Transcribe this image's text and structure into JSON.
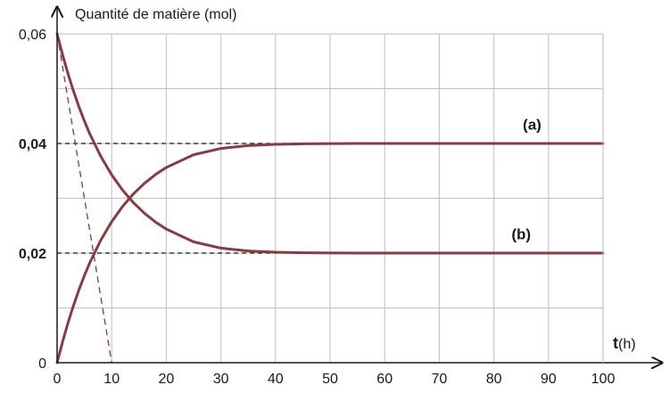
{
  "chart_data": {
    "type": "line",
    "ylabel": "Quantité de matière (mol)",
    "xlabel_bold": "t",
    "xlabel_unit": "(h)",
    "xlim": [
      0,
      100
    ],
    "ylim": [
      0,
      0.06
    ],
    "grid": true,
    "x_ticks": [
      {
        "value": 0,
        "label": "0"
      },
      {
        "value": 10,
        "label": "10"
      },
      {
        "value": 20,
        "label": "20"
      },
      {
        "value": 30,
        "label": "30"
      },
      {
        "value": 40,
        "label": "40"
      },
      {
        "value": 50,
        "label": "50"
      },
      {
        "value": 60,
        "label": "60"
      },
      {
        "value": 70,
        "label": "70"
      },
      {
        "value": 80,
        "label": "80"
      },
      {
        "value": 90,
        "label": "90"
      },
      {
        "value": 100,
        "label": "100"
      }
    ],
    "y_ticks": [
      {
        "value": 0,
        "label": "0",
        "bold": false
      },
      {
        "value": 0.02,
        "label": "0,02",
        "bold": true
      },
      {
        "value": 0.04,
        "label": "0,04",
        "bold": true
      },
      {
        "value": 0.06,
        "label": "0,06",
        "bold": false
      }
    ],
    "series": [
      {
        "label": "(a)",
        "color": "#8a3a40",
        "x": [
          0,
          1,
          2,
          3,
          4,
          5,
          6,
          8,
          10,
          12,
          14,
          16,
          18,
          20,
          25,
          30,
          35,
          40,
          45,
          50,
          55,
          60,
          70,
          80,
          90,
          100
        ],
        "y": [
          0,
          0.00381,
          0.00728,
          0.01043,
          0.0133,
          0.0159,
          0.01827,
          0.02236,
          0.02573,
          0.02852,
          0.03083,
          0.03274,
          0.03432,
          0.03562,
          0.03795,
          0.03909,
          0.03962,
          0.03984,
          0.03993,
          0.03997,
          0.03999,
          0.04,
          0.04,
          0.04,
          0.04,
          0.04
        ],
        "label_x": 87,
        "label_y": 0.0425
      },
      {
        "label": "(b)",
        "color": "#8a3a40",
        "x": [
          0,
          1,
          2,
          3,
          4,
          5,
          6,
          8,
          10,
          12,
          14,
          16,
          18,
          20,
          25,
          30,
          35,
          40,
          45,
          50,
          55,
          60,
          70,
          80,
          90,
          100
        ],
        "y": [
          0.06,
          0.05619,
          0.05272,
          0.04957,
          0.0467,
          0.0441,
          0.04173,
          0.03764,
          0.03427,
          0.03148,
          0.02917,
          0.02726,
          0.02568,
          0.02438,
          0.02205,
          0.02091,
          0.02038,
          0.02016,
          0.02007,
          0.02003,
          0.02001,
          0.02,
          0.02,
          0.02,
          0.02,
          0.02
        ],
        "label_x": 85,
        "label_y": 0.0225
      }
    ],
    "reference_lines": [
      {
        "type": "horizontal",
        "y": 0.04,
        "x_from": 0,
        "x_to": 55
      },
      {
        "type": "horizontal",
        "y": 0.02,
        "x_from": 0,
        "x_to": 55
      },
      {
        "type": "tangent",
        "x_from": 0,
        "y_from": 0.06,
        "x_to": 10,
        "y_to": 0
      }
    ],
    "colors": {
      "curve": "#8a3a40",
      "grid": "#c8c8c8",
      "axis": "#1a1a1a",
      "dashed": "#1a1a1a",
      "tangent": "#8a3a8a"
    }
  }
}
